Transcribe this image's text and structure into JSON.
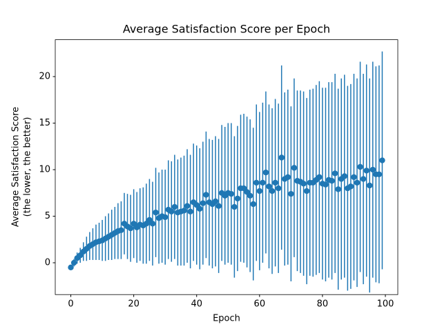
{
  "chart_data": {
    "type": "errorbar",
    "title": "Average Satisfaction Score per Epoch",
    "xlabel": "Epoch",
    "ylabel": [
      "Average Satisfaction Score",
      "(the lower, the better)"
    ],
    "x": [
      0,
      1,
      2,
      3,
      4,
      5,
      6,
      7,
      8,
      9,
      10,
      11,
      12,
      13,
      14,
      15,
      16,
      17,
      18,
      19,
      20,
      21,
      22,
      23,
      24,
      25,
      26,
      27,
      28,
      29,
      30,
      31,
      32,
      33,
      34,
      35,
      36,
      37,
      38,
      39,
      40,
      41,
      42,
      43,
      44,
      45,
      46,
      47,
      48,
      49,
      50,
      51,
      52,
      53,
      54,
      55,
      56,
      57,
      58,
      59,
      60,
      61,
      62,
      63,
      64,
      65,
      66,
      67,
      68,
      69,
      70,
      71,
      72,
      73,
      74,
      75,
      76,
      77,
      78,
      79,
      80,
      81,
      82,
      83,
      84,
      85,
      86,
      87,
      88,
      89,
      90,
      91,
      92,
      93,
      94,
      95,
      96,
      97,
      98,
      99
    ],
    "series": [
      {
        "color": "#1f77b4",
        "values": [
          -0.5,
          0,
          0.5,
          0.8,
          1.2,
          1.5,
          1.8,
          2.0,
          2.2,
          2.3,
          2.4,
          2.6,
          2.8,
          3.0,
          3.2,
          3.4,
          3.5,
          4.2,
          3.9,
          3.7,
          4.2,
          3.8,
          4.1,
          4.0,
          4.2,
          4.6,
          4.2,
          5.4,
          4.8,
          5.0,
          4.9,
          5.7,
          5.5,
          6.0,
          5.4,
          5.5,
          5.6,
          6.1,
          5.5,
          6.5,
          6.2,
          5.8,
          6.4,
          7.3,
          6.5,
          6.3,
          6.6,
          6.1,
          7.5,
          7.2,
          7.5,
          7.4,
          6.0,
          6.9,
          8.0,
          8.0,
          7.6,
          7.2,
          6.3,
          8.6,
          7.7,
          8.6,
          9.7,
          8.2,
          7.7,
          8.6,
          8.0,
          11.3,
          9.0,
          9.2,
          7.4,
          10.2,
          8.8,
          8.7,
          8.5,
          7.7,
          8.6,
          8.6,
          8.9,
          9.2,
          8.5,
          8.4,
          8.9,
          8.8,
          9.6,
          7.9,
          9.0,
          9.3,
          8.0,
          8.2,
          9.2,
          8.6,
          10.3,
          9.0,
          9.9,
          8.3,
          10.0,
          9.5,
          9.5,
          11.0
        ],
        "errors": [
          0.2,
          0.4,
          0.6,
          0.8,
          1.0,
          1.3,
          1.5,
          1.7,
          1.9,
          2.0,
          2.2,
          2.4,
          2.5,
          2.7,
          2.8,
          3.0,
          3.1,
          3.3,
          3.5,
          3.6,
          3.7,
          3.8,
          3.9,
          4.1,
          4.3,
          4.4,
          4.5,
          4.8,
          4.9,
          5.0,
          5.1,
          5.3,
          5.4,
          5.6,
          5.7,
          5.8,
          5.9,
          6.1,
          6.1,
          6.3,
          6.4,
          6.5,
          6.6,
          6.8,
          6.8,
          6.9,
          7.0,
          7.2,
          7.3,
          7.4,
          7.5,
          7.6,
          7.6,
          7.8,
          7.9,
          8.0,
          8.1,
          8.2,
          8.2,
          8.4,
          8.5,
          8.6,
          8.7,
          8.8,
          8.9,
          9.0,
          9.1,
          9.9,
          9.3,
          9.4,
          9.4,
          9.6,
          9.7,
          9.8,
          9.9,
          10.0,
          10.0,
          10.1,
          10.2,
          10.3,
          10.3,
          10.4,
          10.5,
          10.6,
          10.7,
          10.8,
          10.8,
          10.9,
          11.0,
          11.0,
          11.1,
          11.2,
          11.3,
          11.3,
          11.4,
          11.5,
          11.6,
          11.6,
          11.7,
          11.7
        ]
      }
    ],
    "xlim": [
      -4.95,
      103.95
    ],
    "ylim": [
      -3.42,
      23.96
    ],
    "xticks": [
      0,
      20,
      40,
      60,
      80,
      100
    ],
    "yticks": [
      0,
      5,
      10,
      15,
      20
    ]
  }
}
